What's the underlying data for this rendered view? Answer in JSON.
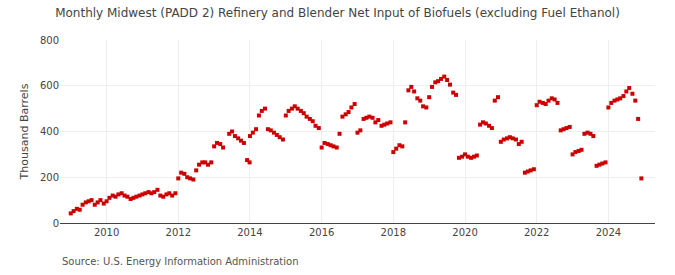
{
  "chart_data": {
    "type": "scatter",
    "title": "Monthly Midwest (PADD 2) Refinery and Blender Net Input of Biofuels (excluding Fuel Ethanol)",
    "ylabel": "Thousand Barrels",
    "annotations": [
      "Source: U.S. Energy Information Administration"
    ],
    "color": "#cc0000",
    "marker": "square",
    "grid": true,
    "xlim": [
      2008.7,
      2025.3
    ],
    "xticks": [
      2010,
      2012,
      2014,
      2016,
      2018,
      2020,
      2022,
      2024
    ],
    "ylim": [
      0,
      800
    ],
    "yticks": [
      0,
      200,
      400,
      600,
      800
    ],
    "x": [
      2009.0,
      2009.08,
      2009.17,
      2009.25,
      2009.33,
      2009.42,
      2009.5,
      2009.58,
      2009.67,
      2009.75,
      2009.83,
      2009.92,
      2010.0,
      2010.08,
      2010.17,
      2010.25,
      2010.33,
      2010.42,
      2010.5,
      2010.58,
      2010.67,
      2010.75,
      2010.83,
      2010.92,
      2011.0,
      2011.08,
      2011.17,
      2011.25,
      2011.33,
      2011.42,
      2011.5,
      2011.58,
      2011.67,
      2011.75,
      2011.83,
      2011.92,
      2012.0,
      2012.08,
      2012.17,
      2012.25,
      2012.33,
      2012.42,
      2012.5,
      2012.58,
      2012.67,
      2012.75,
      2012.83,
      2012.92,
      2013.0,
      2013.08,
      2013.17,
      2013.25,
      2013.42,
      2013.5,
      2013.58,
      2013.67,
      2013.75,
      2013.83,
      2013.92,
      2013.99,
      2014.0,
      2014.08,
      2014.17,
      2014.25,
      2014.33,
      2014.42,
      2014.5,
      2014.58,
      2014.67,
      2014.75,
      2014.83,
      2014.92,
      2015.0,
      2015.08,
      2015.17,
      2015.25,
      2015.33,
      2015.42,
      2015.5,
      2015.58,
      2015.67,
      2015.75,
      2015.83,
      2015.92,
      2016.0,
      2016.08,
      2016.17,
      2016.25,
      2016.33,
      2016.42,
      2016.5,
      2016.58,
      2016.67,
      2016.75,
      2016.83,
      2016.92,
      2017.0,
      2017.08,
      2017.17,
      2017.25,
      2017.33,
      2017.42,
      2017.5,
      2017.58,
      2017.67,
      2017.75,
      2017.83,
      2017.92,
      2018.0,
      2018.08,
      2018.17,
      2018.25,
      2018.33,
      2018.42,
      2018.5,
      2018.58,
      2018.67,
      2018.75,
      2018.83,
      2018.92,
      2019.0,
      2019.08,
      2019.17,
      2019.25,
      2019.33,
      2019.42,
      2019.5,
      2019.58,
      2019.67,
      2019.75,
      2019.83,
      2019.92,
      2020.0,
      2020.08,
      2020.17,
      2020.25,
      2020.33,
      2020.42,
      2020.5,
      2020.58,
      2020.67,
      2020.75,
      2020.83,
      2020.92,
      2021.0,
      2021.08,
      2021.17,
      2021.25,
      2021.33,
      2021.42,
      2021.5,
      2021.58,
      2021.67,
      2021.75,
      2021.83,
      2021.92,
      2022.0,
      2022.08,
      2022.17,
      2022.25,
      2022.33,
      2022.42,
      2022.5,
      2022.58,
      2022.67,
      2022.75,
      2022.83,
      2022.92,
      2023.0,
      2023.08,
      2023.17,
      2023.25,
      2023.33,
      2023.42,
      2023.5,
      2023.58,
      2023.67,
      2023.75,
      2023.83,
      2023.92,
      2024.0,
      2024.08,
      2024.17,
      2024.25,
      2024.33,
      2024.42,
      2024.5,
      2024.58,
      2024.67,
      2024.75,
      2024.83,
      2024.92
    ],
    "values": [
      42,
      52,
      62,
      58,
      80,
      90,
      95,
      100,
      80,
      90,
      100,
      85,
      95,
      110,
      120,
      115,
      125,
      130,
      120,
      115,
      105,
      110,
      115,
      120,
      125,
      130,
      135,
      130,
      135,
      145,
      120,
      115,
      125,
      130,
      120,
      130,
      195,
      220,
      215,
      200,
      195,
      190,
      230,
      255,
      265,
      265,
      255,
      265,
      335,
      350,
      345,
      330,
      390,
      400,
      380,
      370,
      360,
      350,
      275,
      265,
      380,
      395,
      410,
      470,
      490,
      500,
      410,
      405,
      395,
      385,
      375,
      365,
      470,
      490,
      500,
      510,
      500,
      490,
      480,
      465,
      455,
      445,
      425,
      415,
      330,
      350,
      345,
      340,
      335,
      330,
      390,
      465,
      475,
      485,
      505,
      520,
      395,
      405,
      455,
      460,
      465,
      460,
      440,
      450,
      425,
      430,
      435,
      440,
      310,
      325,
      340,
      335,
      440,
      580,
      595,
      575,
      545,
      535,
      510,
      505,
      550,
      595,
      615,
      620,
      630,
      640,
      625,
      605,
      570,
      560,
      285,
      290,
      300,
      290,
      285,
      290,
      295,
      430,
      440,
      435,
      425,
      415,
      535,
      550,
      355,
      365,
      370,
      375,
      370,
      365,
      345,
      355,
      220,
      225,
      230,
      235,
      515,
      530,
      525,
      520,
      535,
      545,
      540,
      525,
      405,
      410,
      415,
      420,
      300,
      310,
      315,
      320,
      390,
      395,
      390,
      380,
      250,
      255,
      260,
      265,
      505,
      525,
      535,
      540,
      545,
      555,
      575,
      590,
      565,
      535,
      455,
      195
    ]
  }
}
